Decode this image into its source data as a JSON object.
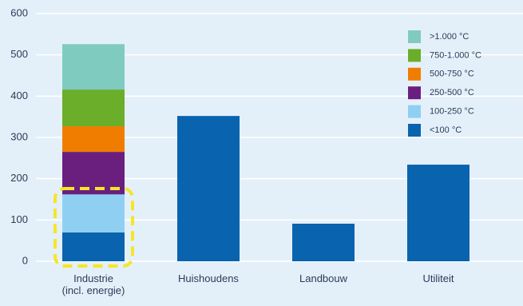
{
  "chart_data": {
    "type": "stacked_bar",
    "categories": [
      "Industrie\n(incl. energie)",
      "Huishoudens",
      "Landbouw",
      "Utiliteit"
    ],
    "series": [
      {
        "name": "<100 °C",
        "color": "#0a63ae",
        "values": [
          70,
          352,
          91,
          234
        ]
      },
      {
        "name": "100-250 °C",
        "color": "#8fd0f2",
        "values": [
          92,
          null,
          null,
          null
        ]
      },
      {
        "name": "250-500 °C",
        "color": "#6a1f7f",
        "values": [
          103,
          null,
          null,
          null
        ]
      },
      {
        "name": "500-750 °C",
        "color": "#f07d00",
        "values": [
          62,
          null,
          null,
          null
        ]
      },
      {
        "name": "750-1.000 °C",
        "color": "#6aae2a",
        "values": [
          89,
          null,
          null,
          null
        ]
      },
      {
        "name": ">1.000 °C",
        "color": "#7fcbc0",
        "values": [
          110,
          null,
          null,
          null
        ]
      }
    ],
    "ylim": [
      0,
      600
    ],
    "yticks": [
      0,
      100,
      200,
      300,
      400,
      500,
      600
    ],
    "grid": true,
    "legend": "upper right"
  }
}
